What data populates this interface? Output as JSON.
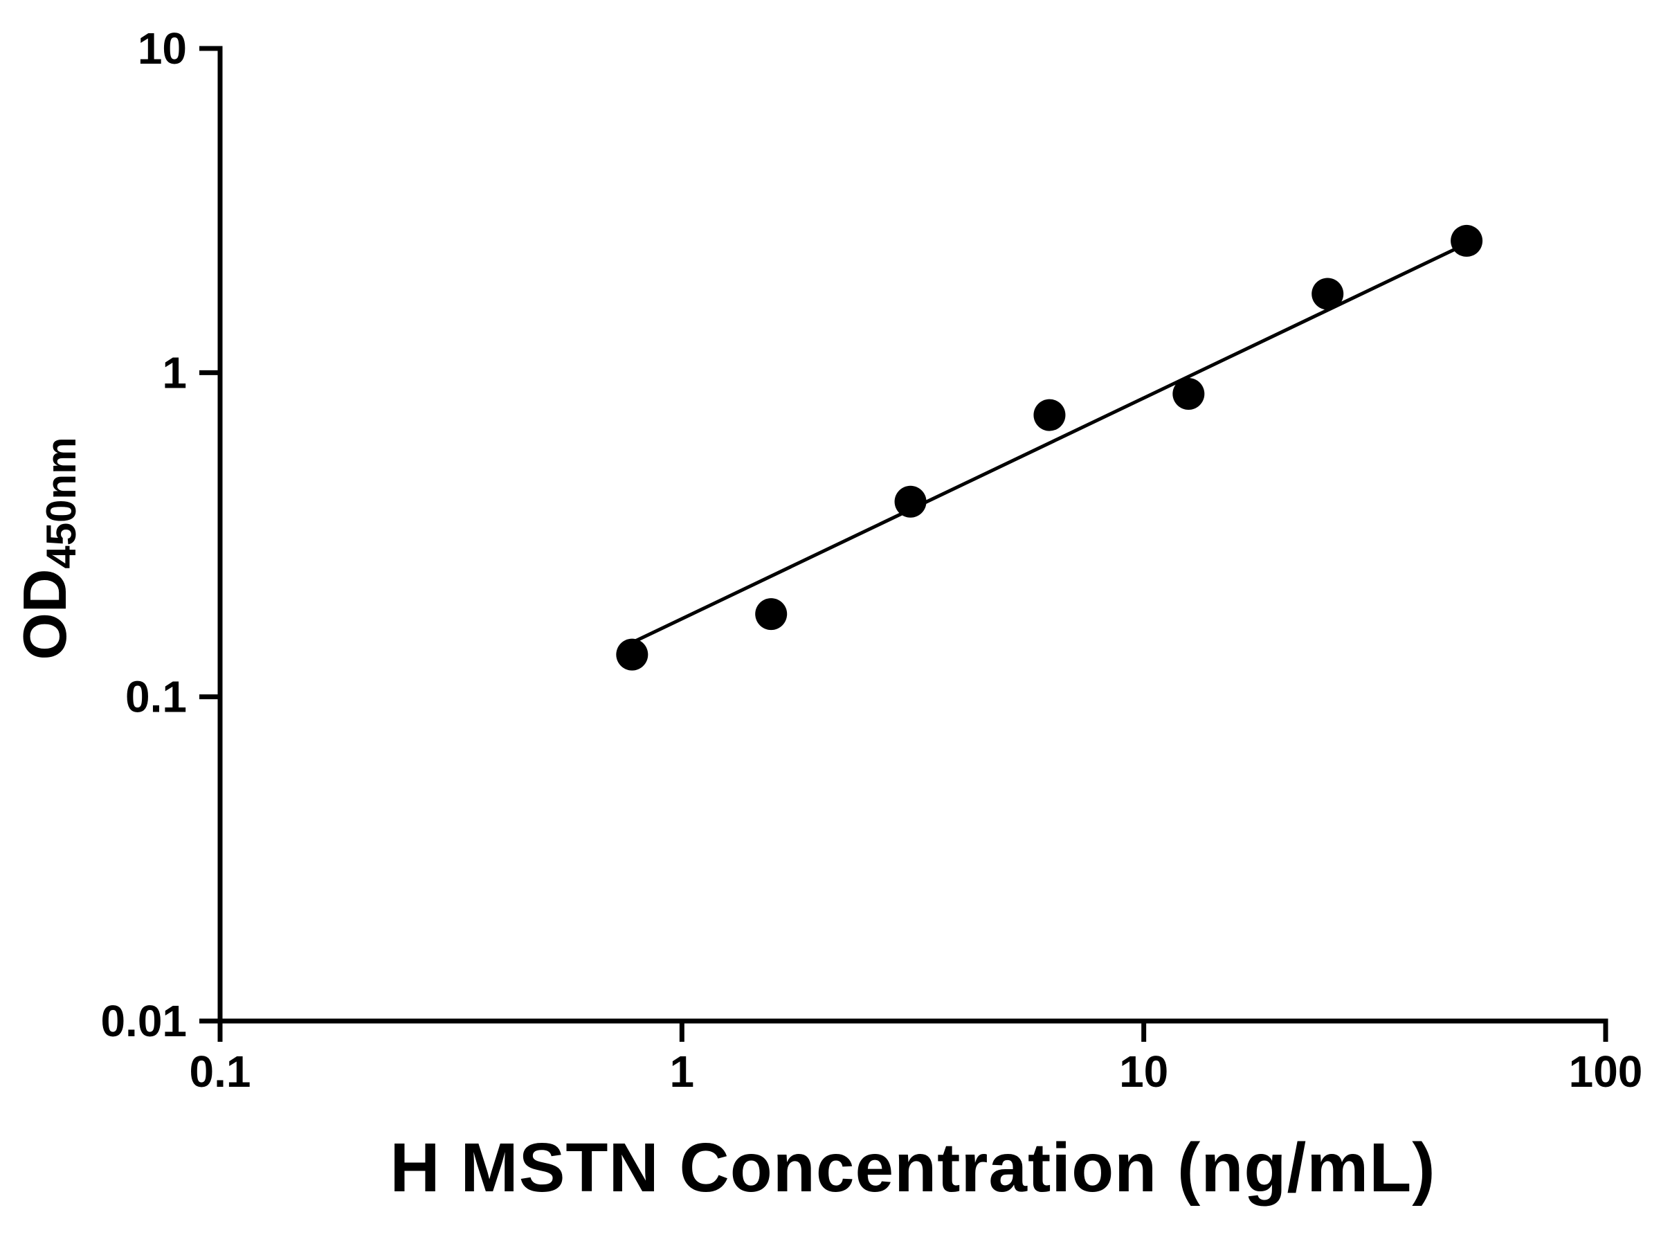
{
  "chart_data": {
    "type": "scatter",
    "title": "",
    "xlabel": "H MSTN Concentration (ng/mL)",
    "ylabel_main": "OD",
    "ylabel_sub": "450nm",
    "x_scale": "log",
    "y_scale": "log",
    "xlim": [
      0.1,
      100
    ],
    "ylim": [
      0.01,
      10
    ],
    "grid": "off",
    "legend": "none",
    "x_ticks": [
      {
        "value": 0.1,
        "label": "0.1"
      },
      {
        "value": 1,
        "label": "1"
      },
      {
        "value": 10,
        "label": "10"
      },
      {
        "value": 100,
        "label": "100"
      }
    ],
    "y_ticks": [
      {
        "value": 0.01,
        "label": "0.01"
      },
      {
        "value": 0.1,
        "label": "0.1"
      },
      {
        "value": 1,
        "label": "1"
      },
      {
        "value": 10,
        "label": "10"
      }
    ],
    "points": [
      {
        "x": 0.78,
        "y": 0.135
      },
      {
        "x": 1.56,
        "y": 0.18
      },
      {
        "x": 3.125,
        "y": 0.4
      },
      {
        "x": 6.25,
        "y": 0.74
      },
      {
        "x": 12.5,
        "y": 0.86
      },
      {
        "x": 25,
        "y": 1.75
      },
      {
        "x": 50,
        "y": 2.55
      }
    ],
    "trend_line": {
      "x1": 0.78,
      "y1": 0.147,
      "x2": 50,
      "y2": 2.5
    },
    "marker_color": "#000000",
    "line_color": "#000000",
    "axis_color": "#000000"
  }
}
